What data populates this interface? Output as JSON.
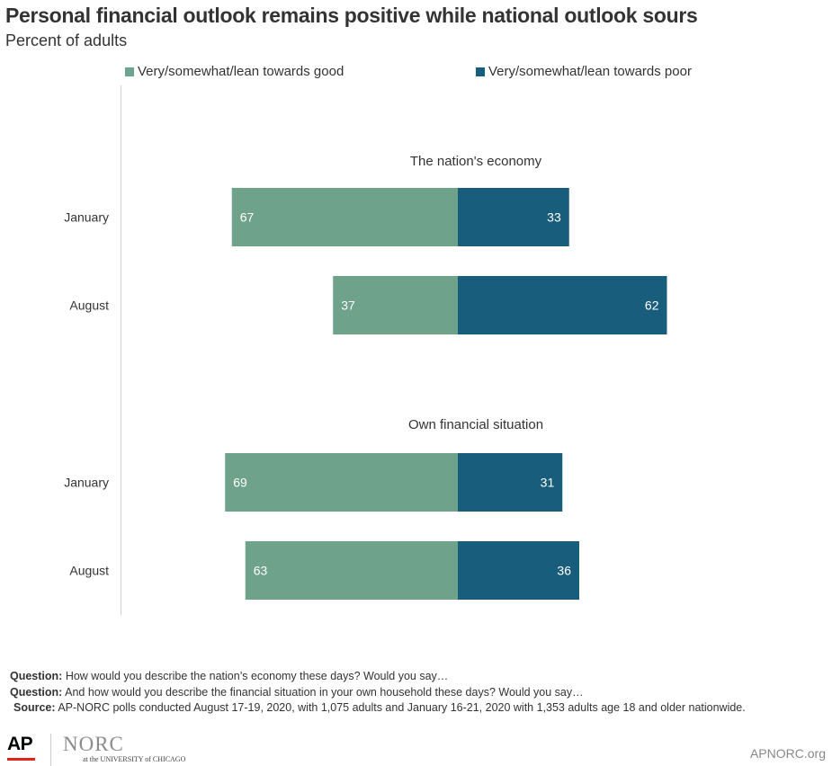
{
  "title": "Personal financial outlook remains positive while national outlook sours",
  "subtitle": "Percent of adults",
  "legend": [
    {
      "label": "Very/somewhat/lean towards good",
      "color": "#6fa28a"
    },
    {
      "label": "Very/somewhat/lean towards poor",
      "color": "#195d7c"
    }
  ],
  "chart_data": {
    "type": "bar",
    "orientation": "horizontal",
    "layout": "diverging",
    "panels": [
      {
        "title": "The nation's economy",
        "categories": [
          "January",
          "August"
        ],
        "series": [
          {
            "name": "Very/somewhat/lean towards good",
            "values": [
              67,
              37
            ]
          },
          {
            "name": "Very/somewhat/lean towards poor",
            "values": [
              33,
              62
            ]
          }
        ]
      },
      {
        "title": "Own financial situation",
        "categories": [
          "January",
          "August"
        ],
        "series": [
          {
            "name": "Very/somewhat/lean towards good",
            "values": [
              69,
              63
            ]
          },
          {
            "name": "Very/somewhat/lean towards poor",
            "values": [
              31,
              36
            ]
          }
        ]
      }
    ],
    "grid": false,
    "legend_position": "top"
  },
  "notes": [
    {
      "label": "Question:",
      "text": " How would you describe the nation’s economy these days? Would you say…"
    },
    {
      "label": "Question:",
      "text": " And how would you describe the financial situation in your own household these days? Would you say…"
    },
    {
      "label": "Source:",
      "text": " AP-NORC polls conducted August 17-19, 2020, with 1,075 adults and January 16-21, 2020 with  1,353 adults age 18 and older nationwide."
    }
  ],
  "footer": {
    "logo_ap": "AP",
    "logo_norc": "NORC",
    "logo_norc_sub": "at the UNIVERSITY of CHICAGO",
    "site": "APNORC.org"
  }
}
